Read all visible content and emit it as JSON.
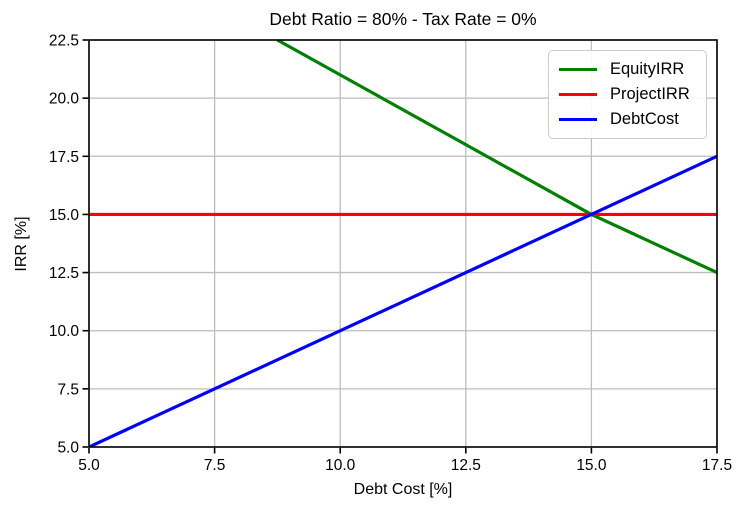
{
  "chart_data": {
    "type": "line",
    "title": "Debt Ratio = 80% - Tax Rate = 0%",
    "xlabel": "Debt Cost [%]",
    "ylabel": "IRR [%]",
    "xlim": [
      5.0,
      17.5
    ],
    "ylim": [
      5.0,
      22.5
    ],
    "xtick_labels": [
      "5.0",
      "7.5",
      "10.0",
      "12.5",
      "15.0",
      "17.5"
    ],
    "ytick_labels": [
      "5.0",
      "7.5",
      "10.0",
      "12.5",
      "15.0",
      "17.5",
      "20.0",
      "22.5"
    ],
    "grid": true,
    "grid_color": "#bdbdbd",
    "legend_position": "upper right",
    "series": [
      {
        "name": "EquityIRR",
        "color": "#008000",
        "x": [
          8.75,
          10.0,
          12.5,
          15.0,
          17.5
        ],
        "y": [
          22.5,
          21.0,
          18.0,
          15.0,
          12.5
        ]
      },
      {
        "name": "ProjectIRR",
        "color": "#ff0000",
        "x": [
          5.0,
          17.5
        ],
        "y": [
          15.0,
          15.0
        ]
      },
      {
        "name": "DebtCost",
        "color": "#0000ff",
        "x": [
          5.0,
          17.5
        ],
        "y": [
          5.0,
          17.5
        ]
      }
    ]
  }
}
